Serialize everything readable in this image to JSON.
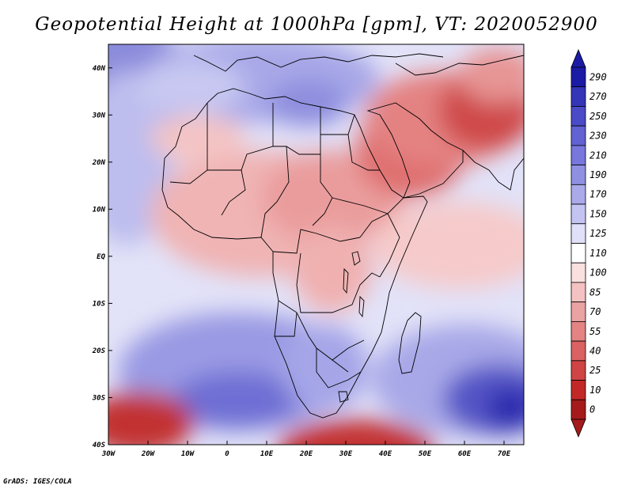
{
  "title": "Geopotential Height at 1000hPa [gpm], VT: 2020052900",
  "credit": "GrADS: IGES/COLA",
  "map": {
    "lon_labels": [
      "30W",
      "20W",
      "10W",
      "0",
      "10E",
      "20E",
      "30E",
      "40E",
      "50E",
      "60E",
      "70E"
    ],
    "lat_labels": [
      "40N",
      "30N",
      "20N",
      "10N",
      "EQ",
      "10S",
      "20S",
      "30S",
      "40S"
    ],
    "lon_range": [
      -30,
      75
    ],
    "lat_range": [
      -40,
      45
    ]
  },
  "colorbar": {
    "levels": [
      "290",
      "270",
      "250",
      "230",
      "210",
      "190",
      "170",
      "150",
      "125",
      "110",
      "100",
      "85",
      "70",
      "55",
      "40",
      "25",
      "10",
      "0"
    ],
    "colors": [
      "#1b1ba5",
      "#3535b8",
      "#4b4bc8",
      "#6262d2",
      "#7777dc",
      "#9090e2",
      "#aaaaea",
      "#c4c4f2",
      "#e0e0f9",
      "#ffffff",
      "#fbe0e0",
      "#f4c2c2",
      "#eba2a2",
      "#e38383",
      "#da6262",
      "#cf4444",
      "#c22828",
      "#a51b1b"
    ]
  }
}
